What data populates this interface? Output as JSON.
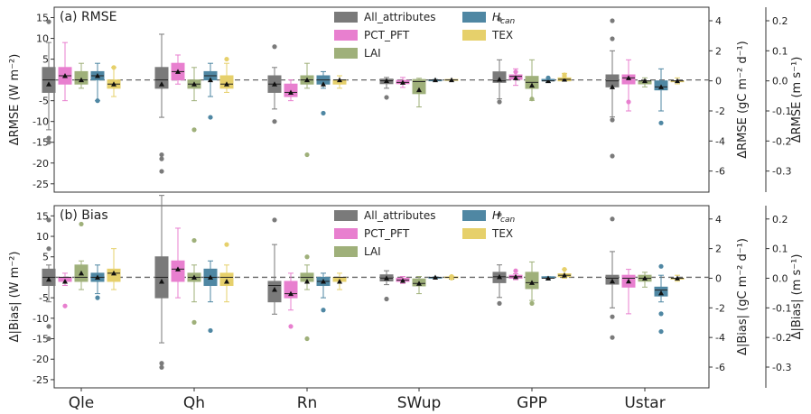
{
  "chart_data": {
    "type": "box",
    "categories": [
      "Qle",
      "Qh",
      "Rn",
      "SWup",
      "GPP",
      "Ustar"
    ],
    "series": [
      {
        "name": "All_attributes",
        "name_parts": [
          "All_attributes"
        ],
        "color": "#7a7a7a"
      },
      {
        "name": "PCT_PFT",
        "name_parts": [
          "PCT_PFT"
        ],
        "color": "#e87fcf"
      },
      {
        "name": "LAI",
        "name_parts": [
          "LAI"
        ],
        "color": "#9fb07a"
      },
      {
        "name": "H_can",
        "name_parts": [
          "H",
          "can"
        ],
        "color": "#4f87a3"
      },
      {
        "name": "TEX",
        "name_parts": [
          "TEX"
        ],
        "color": "#e6d06b"
      }
    ],
    "panels": [
      {
        "title": "(b) Bias",
        "ylabel_left": "Δ|Bias| (W m⁻²)",
        "ylabel_right1": "Δ|Bias| (gC m⁻² d⁻¹)",
        "ylabel_right2": "Δ|Bias| (m s⁻¹)",
        "yticks_left": [
          15,
          10,
          5,
          0,
          -5,
          -10,
          -15,
          -20,
          -25
        ],
        "yticks_right1": [
          4,
          2,
          0,
          -2,
          -4,
          -6
        ],
        "yticks_right2": [
          0.2,
          0.1,
          0.0,
          -0.1,
          -0.2,
          -0.3
        ],
        "boxes": [
          [
            [
              -6,
              -2,
              0,
              2,
              3,
              -0.5,
              [
                7,
                14,
                -12,
                -15
              ]
            ],
            [
              -2,
              -1,
              0,
              0,
              1,
              -1,
              [
                -7
              ]
            ],
            [
              -3,
              -1,
              0,
              3,
              4,
              1,
              [
                13
              ]
            ],
            [
              -4,
              -1,
              0,
              1,
              3,
              0,
              [
                -5
              ]
            ],
            [
              -3,
              -1,
              1,
              2,
              7,
              1,
              []
            ]
          ],
          [
            [
              -16,
              -5,
              0,
              5,
              20,
              -1,
              [
                -21,
                -22
              ]
            ],
            [
              -5,
              -1,
              2,
              4,
              12,
              2,
              []
            ],
            [
              -6,
              -1,
              0,
              1,
              3,
              0,
              [
                9,
                -11
              ]
            ],
            [
              -6,
              -2,
              0,
              2,
              4,
              0,
              [
                -13
              ]
            ],
            [
              -6,
              -2,
              0,
              1,
              3,
              -1,
              [
                8
              ]
            ]
          ],
          [
            [
              -9,
              -6,
              -2,
              -1,
              8,
              -3,
              [
                14
              ]
            ],
            [
              -8,
              -5,
              -4,
              -1,
              1,
              -4,
              [
                -12
              ]
            ],
            [
              -3,
              -1,
              0,
              1,
              3,
              -1,
              [
                -15,
                5
              ]
            ],
            [
              -5,
              -2,
              -1,
              0,
              1,
              -1,
              [
                -8
              ]
            ],
            [
              -3,
              -1,
              0,
              0,
              1,
              -1,
              []
            ]
          ],
          [
            [
              -1.8,
              -0.9,
              -0.2,
              0.6,
              1.6,
              -0.2,
              [
                -5.3
              ]
            ],
            [
              -1.5,
              -1,
              -0.7,
              -0.2,
              0.2,
              -0.8,
              []
            ],
            [
              -4,
              -2.1,
              -1.5,
              -0.4,
              0.2,
              -1.5,
              []
            ],
            [
              -0.1,
              0,
              0,
              0,
              0.1,
              0,
              []
            ],
            [
              -0.3,
              -0.1,
              0,
              0.1,
              0.3,
              0,
              [
                0.2,
                -0.2
              ]
            ]
          ],
          [
            [
              -1.3,
              -0.3,
              0.1,
              0.4,
              0.9,
              0.1,
              [
                4.3,
                -1.7
              ]
            ],
            [
              -0.1,
              0,
              0.1,
              0.2,
              0.3,
              0.1,
              [
                0.5
              ]
            ],
            [
              -1.5,
              -0.7,
              -0.3,
              0.4,
              1.1,
              -0.3,
              [
                -1.7
              ]
            ],
            [
              -0.1,
              0,
              0,
              0.1,
              0.1,
              0,
              []
            ],
            [
              0,
              0.1,
              0.2,
              0.3,
              0.6,
              0.2,
              [
                0.6
              ]
            ]
          ],
          [
            [
              -0.1,
              -0.02,
              0,
              0.01,
              0.09,
              -0.01,
              [
                0.2,
                -0.13,
                -0.2
              ]
            ],
            [
              -0.12,
              -0.03,
              0,
              0.01,
              0.03,
              -0.01,
              []
            ],
            [
              -0.03,
              -0.01,
              0,
              0.01,
              0.02,
              0,
              []
            ],
            [
              -0.08,
              -0.06,
              -0.04,
              -0.03,
              0.01,
              -0.05,
              [
                0.04,
                -0.12,
                -0.18
              ]
            ],
            [
              -0.01,
              0,
              0,
              0,
              0.01,
              0,
              []
            ]
          ]
        ]
      },
      {
        "title": "(a) RMSE",
        "ylabel_left": "ΔRMSE (W m⁻²)",
        "ylabel_right1": "ΔRMSE (gC m⁻² d⁻¹)",
        "ylabel_right2": "ΔRMSE (m s⁻¹)",
        "yticks_left": [
          15,
          10,
          5,
          0,
          -5,
          -10,
          -15,
          -20,
          -25
        ],
        "yticks_right1": [
          4,
          2,
          0,
          -2,
          -4,
          -6
        ],
        "yticks_right2": [
          0.2,
          0.1,
          0.0,
          -0.1,
          -0.2,
          -0.3
        ],
        "boxes": [
          [
            [
              -12,
              -3,
              0,
              3,
              9,
              -1,
              [
                14,
                -15,
                -14
              ]
            ],
            [
              -5,
              -1,
              1,
              3,
              9,
              1,
              []
            ],
            [
              -2,
              -1,
              0,
              2,
              4,
              0,
              []
            ],
            [
              -5,
              0,
              1,
              2,
              4,
              1,
              [
                -5
              ]
            ],
            [
              -4,
              -2,
              -1,
              0,
              3,
              -1,
              [
                3
              ]
            ]
          ],
          [
            [
              -9,
              -2,
              0,
              3,
              11,
              -1,
              [
                -18,
                -19,
                -22
              ]
            ],
            [
              -1,
              0,
              2,
              4,
              6,
              2,
              []
            ],
            [
              -5,
              -2,
              -1,
              0,
              3,
              -1,
              [
                -12
              ]
            ],
            [
              -4,
              0,
              1,
              2,
              4,
              0,
              [
                -9
              ]
            ],
            [
              -3,
              -2,
              -1,
              1,
              4,
              -1,
              [
                5
              ]
            ]
          ],
          [
            [
              -7,
              -3,
              -1,
              1,
              3,
              -1,
              [
                8,
                -10
              ]
            ],
            [
              -5,
              -4,
              -3,
              -1,
              0,
              -3,
              []
            ],
            [
              -2,
              -1,
              0,
              1,
              4,
              0,
              [
                -18
              ]
            ],
            [
              -2,
              -1,
              0,
              1,
              2,
              -1,
              [
                -8
              ]
            ],
            [
              -2,
              -1,
              0,
              0,
              1,
              0,
              []
            ]
          ],
          [
            [
              -2,
              -0.9,
              -0.2,
              0.2,
              0.6,
              -0.2,
              [
                -4.2
              ]
            ],
            [
              -1.8,
              -0.9,
              -0.6,
              -0.1,
              0.6,
              -0.6,
              []
            ],
            [
              -6.5,
              -3.3,
              -0.4,
              0.1,
              0.4,
              -2.4,
              []
            ],
            [
              -0.1,
              0,
              0,
              0,
              0.1,
              0,
              []
            ],
            [
              0,
              0,
              0,
              0.1,
              0.1,
              0,
              []
            ]
          ],
          [
            [
              -1.2,
              -0.1,
              0,
              0.6,
              1.4,
              0.1,
              [
                4.1,
                -1.4
              ]
            ],
            [
              -0.3,
              0.1,
              0.3,
              0.4,
              0.8,
              0.2,
              [
                0.6
              ]
            ],
            [
              -1.3,
              -0.5,
              -0.1,
              0.3,
              1.4,
              -0.3,
              [
                -1.2
              ]
            ],
            [
              -0.1,
              0,
              0,
              0.1,
              0.1,
              0,
              [
                0.2
              ]
            ],
            [
              0,
              0,
              0.1,
              0.2,
              0.5,
              0.1,
              [
                0.4,
                0.3
              ]
            ]
          ],
          [
            [
              -0.12,
              -0.02,
              0,
              0.02,
              0.1,
              -0.02,
              [
                0.2,
                0.14,
                -0.13,
                -0.25
              ]
            ],
            [
              -0.1,
              -0.01,
              0.01,
              0.02,
              0.07,
              0.01,
              [
                -0.07
              ]
            ],
            [
              -0.02,
              -0.01,
              0,
              0,
              0.01,
              0,
              []
            ],
            [
              -0.1,
              -0.03,
              -0.02,
              0,
              0.04,
              -0.02,
              [
                -0.14
              ]
            ],
            [
              -0.01,
              0,
              0,
              0,
              0.01,
              0,
              []
            ]
          ]
        ]
      }
    ],
    "legend_placement": "top-center",
    "grid": false
  }
}
